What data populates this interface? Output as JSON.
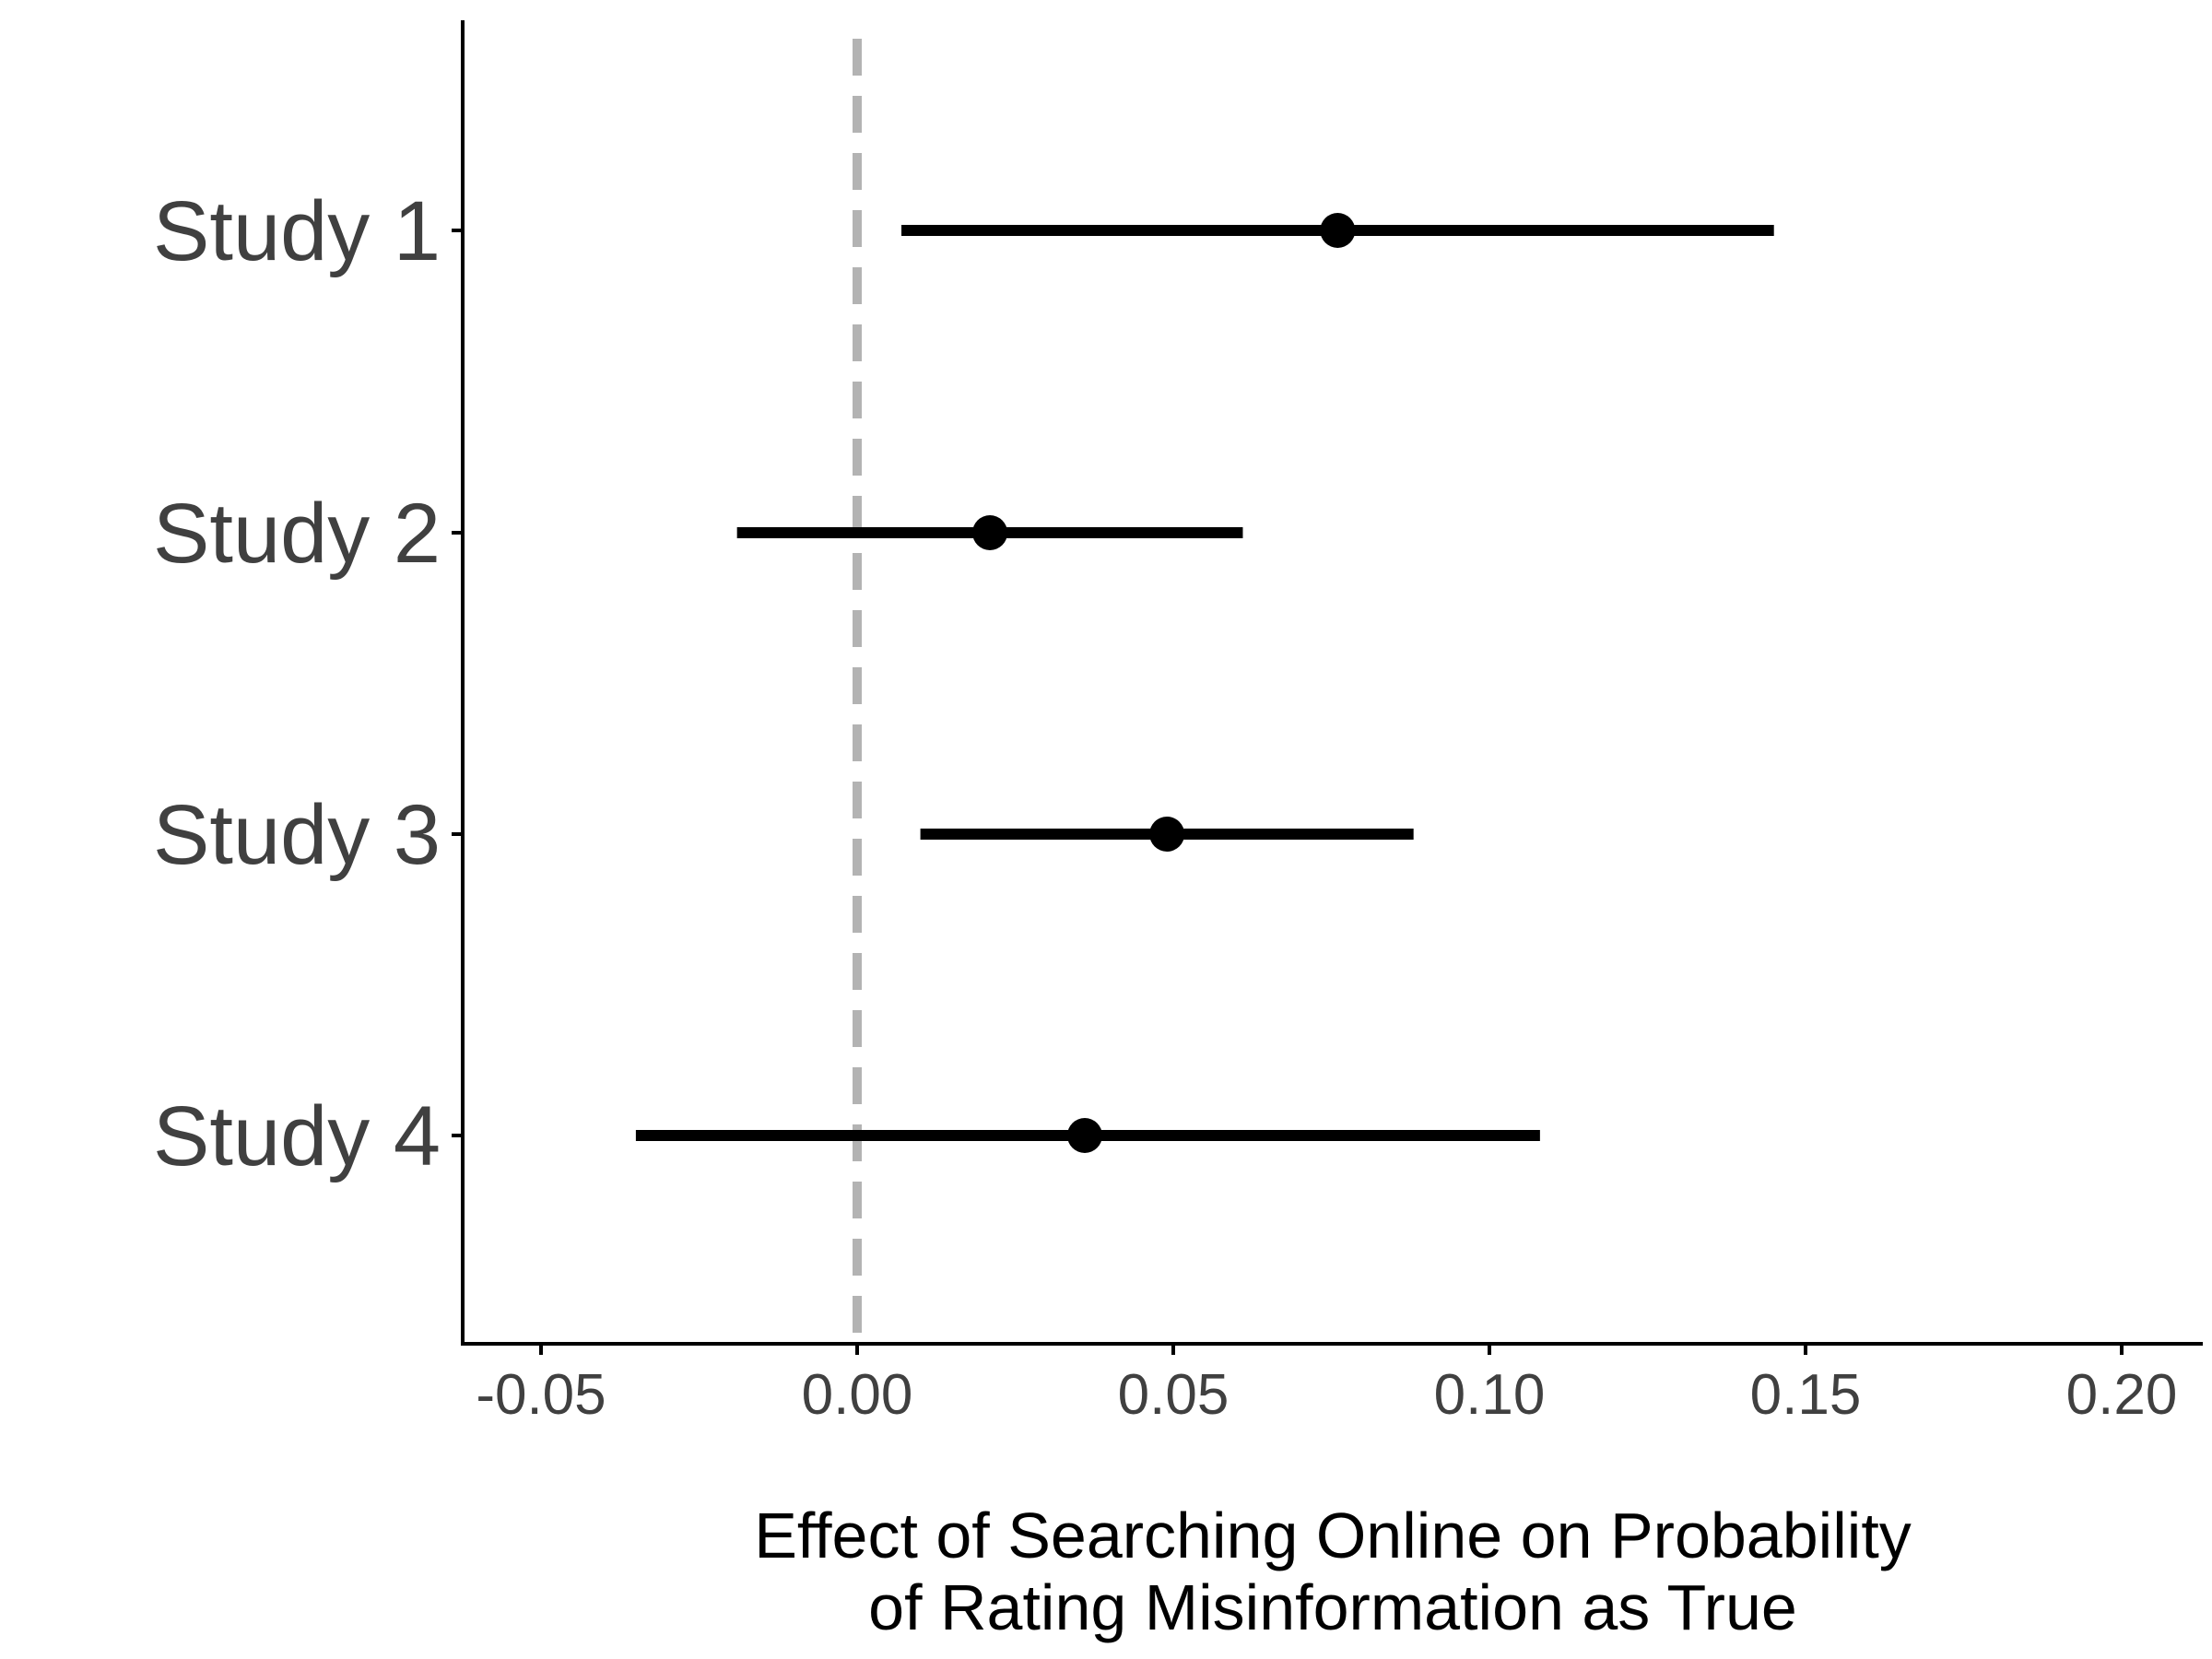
{
  "chart_data": {
    "type": "scatter",
    "subtype": "forest-plot-point-range",
    "title": "",
    "xlabel": [
      "Effect of Searching Online on Probability",
      "of Rating Misinformation as True"
    ],
    "ylabel": "",
    "xlim": [
      -0.062,
      0.212
    ],
    "xticks": [
      -0.05,
      0.0,
      0.05,
      0.1,
      0.15,
      0.2
    ],
    "xtick_labels": [
      "-0.05",
      "0.00",
      "0.05",
      "0.10",
      "0.15",
      "0.20"
    ],
    "reference_line": {
      "x": 0.0,
      "style": "dashed",
      "color": "#b3b3b3"
    },
    "grid": false,
    "legend": "none",
    "colors": {
      "marks": "#000000",
      "axis": "#000000",
      "tick_text": "#404040"
    },
    "categories": [
      "Study 1",
      "Study 2",
      "Study 3",
      "Study 4"
    ],
    "estimates": [
      {
        "label": "Study 1",
        "estimate": 0.076,
        "lower": 0.007,
        "upper": 0.145
      },
      {
        "label": "Study 2",
        "estimate": 0.021,
        "lower": -0.019,
        "upper": 0.061
      },
      {
        "label": "Study 3",
        "estimate": 0.049,
        "lower": 0.01,
        "upper": 0.088
      },
      {
        "label": "Study 4",
        "estimate": 0.036,
        "lower": -0.035,
        "upper": 0.108
      }
    ]
  }
}
